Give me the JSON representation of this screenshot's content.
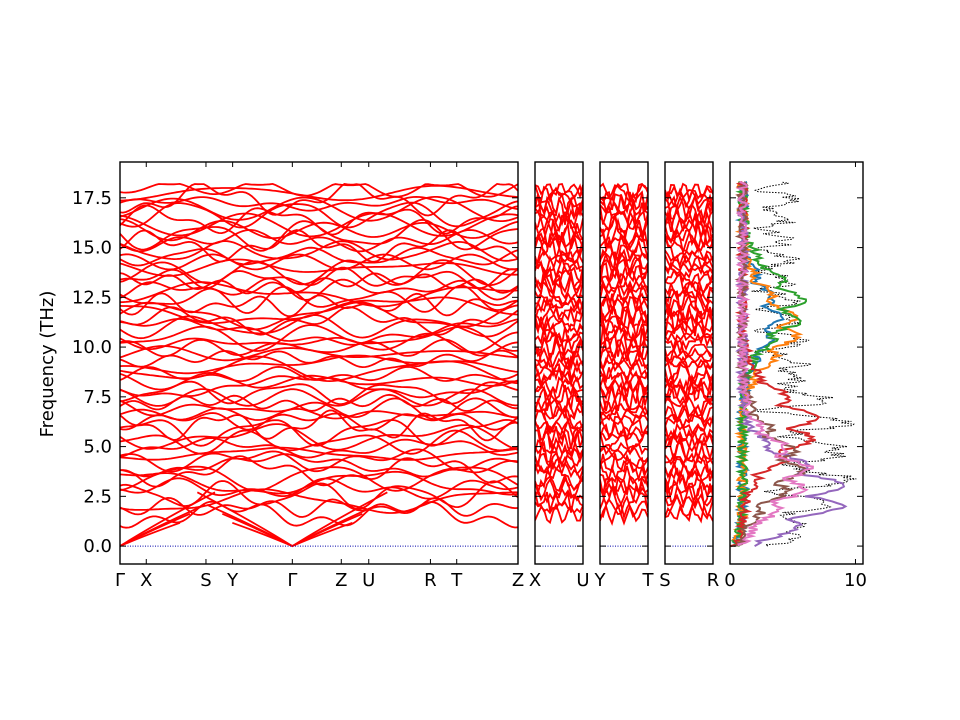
{
  "chart_data": {
    "type": "line",
    "ylabel": "Frequency (THz)",
    "ylim": [
      -0.9,
      19.3
    ],
    "y_ticks": [
      "0.0",
      "2.5",
      "5.0",
      "7.5",
      "10.0",
      "12.5",
      "15.0",
      "17.5"
    ],
    "y_tick_values": [
      0.0,
      2.5,
      5.0,
      7.5,
      10.0,
      12.5,
      15.0,
      17.5
    ],
    "band_color": "#ff0000",
    "zero_line_color": "#0000aa",
    "band_panels": [
      {
        "ticks": [
          {
            "label": "Γ",
            "pos": 0.0
          },
          {
            "label": "X",
            "pos": 0.066
          },
          {
            "label": "S",
            "pos": 0.216
          },
          {
            "label": "Y",
            "pos": 0.283
          },
          {
            "label": "Γ",
            "pos": 0.433
          },
          {
            "label": "Z",
            "pos": 0.556
          },
          {
            "label": "U",
            "pos": 0.625
          },
          {
            "label": "R",
            "pos": 0.78
          },
          {
            "label": "T",
            "pos": 0.846
          },
          {
            "label": "Z",
            "pos": 1.0
          }
        ],
        "acoustic_zero": [
          0.0,
          0.433
        ]
      },
      {
        "ticks": [
          {
            "label": "X",
            "pos": 0.0
          },
          {
            "label": "U",
            "pos": 1.0
          }
        ]
      },
      {
        "ticks": [
          {
            "label": "Y",
            "pos": 0.0
          },
          {
            "label": "T",
            "pos": 1.0
          }
        ]
      },
      {
        "ticks": [
          {
            "label": "S",
            "pos": 0.0
          },
          {
            "label": "R",
            "pos": 1.0
          }
        ]
      }
    ],
    "dos_panel": {
      "xlim": [
        0,
        10.6
      ],
      "x_ticks": [
        "0",
        "10"
      ],
      "x_tick_values": [
        0,
        10
      ],
      "total_color": "#000000",
      "series": [
        {
          "color": "#1f77b4",
          "center": 11.5,
          "amp": 3.0
        },
        {
          "color": "#ff7f0e",
          "center": 11.0,
          "amp": 4.5
        },
        {
          "color": "#2ca02c",
          "center": 12.0,
          "amp": 5.0
        },
        {
          "color": "#d62728",
          "center": 6.0,
          "amp": 6.0
        },
        {
          "color": "#9467bd",
          "center": 2.6,
          "amp": 8.5
        },
        {
          "color": "#8c564b",
          "center": 4.0,
          "amp": 5.0
        },
        {
          "color": "#e377c2",
          "center": 3.5,
          "amp": 5.5
        }
      ]
    }
  }
}
